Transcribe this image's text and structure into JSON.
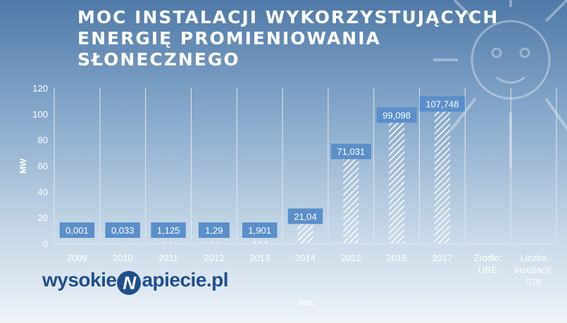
{
  "title": "MOC INSTALACJI WYKORZYSTUJĄCYCH ENERGIĘ PROMIENIOWANIA SŁONECZNEGO",
  "logo": {
    "prefix": "wysokie",
    "letter": "N",
    "suffix": "apiecie.pl"
  },
  "colors": {
    "bar": "#ffffff",
    "label_box": "#5b8fca",
    "grid": "#dfe8f2",
    "logo": "#1f4f8e"
  },
  "chart_data": {
    "type": "bar",
    "categories": [
      "2009",
      "2010",
      "2011",
      "2012",
      "2013",
      "2014",
      "2015",
      "2016",
      "2017",
      "Źrodło: URE",
      "Liczba instalacji: 579"
    ],
    "values": [
      0.001,
      0.033,
      1.125,
      1.29,
      1.901,
      21.04,
      71.031,
      99.098,
      107.748,
      null,
      null
    ],
    "data_labels": [
      "0,001",
      "0,033",
      "1,125",
      "1,29",
      "1,901",
      "21,04",
      "71,031",
      "99,098",
      "107,748",
      "",
      ""
    ],
    "xlabel": "lata",
    "ylabel": "MW",
    "ylim": [
      0,
      120
    ],
    "yticks": [
      0,
      20,
      40,
      60,
      80,
      100,
      120
    ],
    "bar_pattern": "diagonal-hatch",
    "grid": "vertical",
    "legend": "none"
  }
}
